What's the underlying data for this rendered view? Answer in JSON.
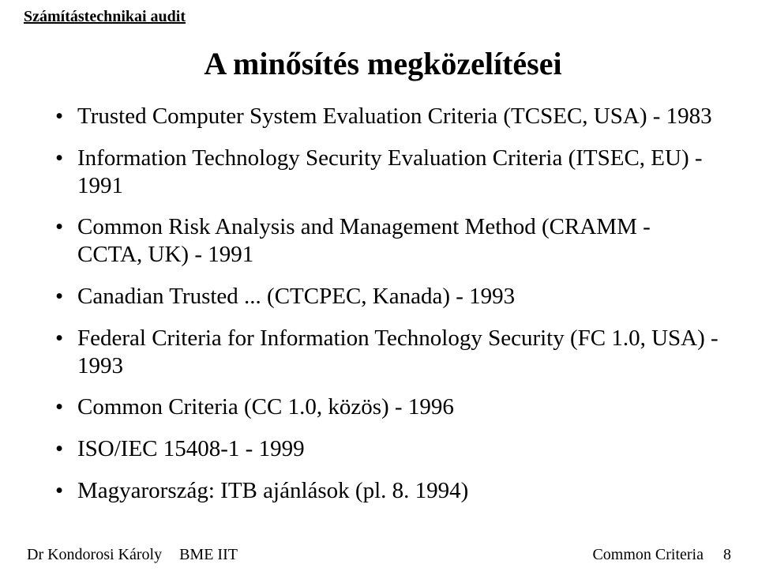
{
  "header": {
    "text": "Számítástechnikai audit"
  },
  "title": "A minősítés megközelítései",
  "bullets": [
    "Trusted Computer System Evaluation Criteria (TCSEC, USA) - 1983",
    "Information Technology Security Evaluation Criteria (ITSEC, EU) - 1991",
    "Common Risk Analysis and Management Method (CRAMM - CCTA, UK) - 1991",
    "Canadian Trusted ... (CTCPEC, Kanada) - 1993",
    "Federal Criteria for Information Technology Security (FC 1.0, USA) - 1993",
    "Common Criteria (CC 1.0, közös) - 1996",
    "ISO/IEC 15408-1 - 1999",
    "Magyarország: ITB ajánlások (pl. 8. 1994)"
  ],
  "footer": {
    "author": "Dr Kondorosi Károly",
    "org": "BME IIT",
    "topic": "Common Criteria",
    "page": "8"
  },
  "colors": {
    "background": "#ffffff",
    "text": "#000000"
  },
  "typography": {
    "family": "Times New Roman",
    "title_size": 40,
    "bullet_size": 29,
    "header_size": 20,
    "footer_size": 20
  }
}
